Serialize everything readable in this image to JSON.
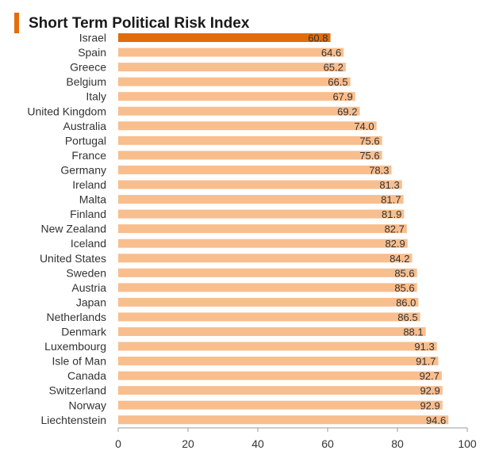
{
  "colors": {
    "accent": "#E36C0A",
    "bar": "#F9BE8E",
    "highlight": "#E36C0A",
    "axis": "#999999"
  },
  "chart_data": {
    "type": "bar",
    "orientation": "horizontal",
    "title": "Short Term Political Risk Index",
    "categories": [
      "Israel",
      "Spain",
      "Greece",
      "Belgium",
      "Italy",
      "United Kingdom",
      "Australia",
      "Portugal",
      "France",
      "Germany",
      "Ireland",
      "Malta",
      "Finland",
      "New Zealand",
      "Iceland",
      "United States",
      "Sweden",
      "Austria",
      "Japan",
      "Netherlands",
      "Denmark",
      "Luxembourg",
      "Isle of Man",
      "Canada",
      "Switzerland",
      "Norway",
      "Liechtenstein"
    ],
    "values": [
      60.8,
      64.6,
      65.2,
      66.5,
      67.9,
      69.2,
      74.0,
      75.6,
      75.6,
      78.3,
      81.3,
      81.7,
      81.9,
      82.7,
      82.9,
      84.2,
      85.6,
      85.6,
      86.0,
      86.5,
      88.1,
      91.3,
      91.7,
      92.7,
      92.9,
      92.9,
      94.6
    ],
    "value_labels": [
      "60.8",
      "64.6",
      "65.2",
      "66.5",
      "67.9",
      "69.2",
      "74.0",
      "75.6",
      "75.6",
      "78.3",
      "81.3",
      "81.7",
      "81.9",
      "82.7",
      "82.9",
      "84.2",
      "85.6",
      "85.6",
      "86.0",
      "86.5",
      "88.1",
      "91.3",
      "91.7",
      "92.7",
      "92.9",
      "92.9",
      "94.6"
    ],
    "highlight_index": 0,
    "xlim": [
      0,
      100
    ],
    "xticks": [
      "0",
      "20",
      "40",
      "60",
      "80",
      "100"
    ],
    "xlabel": "",
    "ylabel": "",
    "grid": false,
    "legend": "none"
  }
}
